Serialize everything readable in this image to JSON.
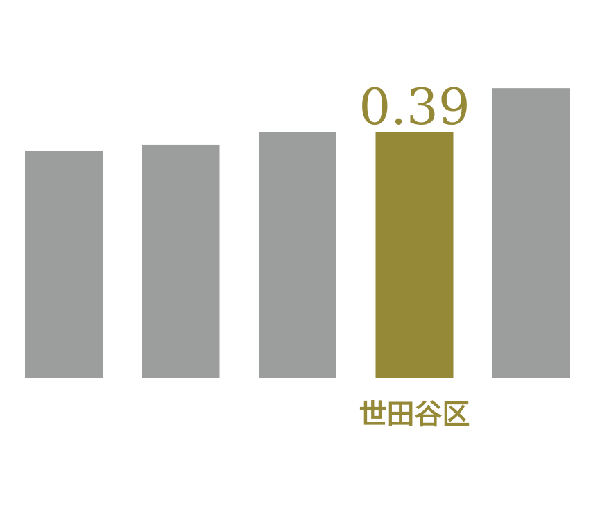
{
  "chart_data": {
    "type": "bar",
    "categories": [
      "",
      "",
      "",
      "世田谷区",
      ""
    ],
    "values": [
      0.36,
      0.37,
      0.39,
      0.39,
      0.46
    ],
    "highlight_index": 3,
    "highlight_value_label": "0.39",
    "highlight_category_label": "世田谷区",
    "ylim": [
      0,
      0.6
    ],
    "grid": false,
    "colors": {
      "bar": "#9c9e9d",
      "highlight": "#958938",
      "highlight_text": "#958938"
    }
  }
}
